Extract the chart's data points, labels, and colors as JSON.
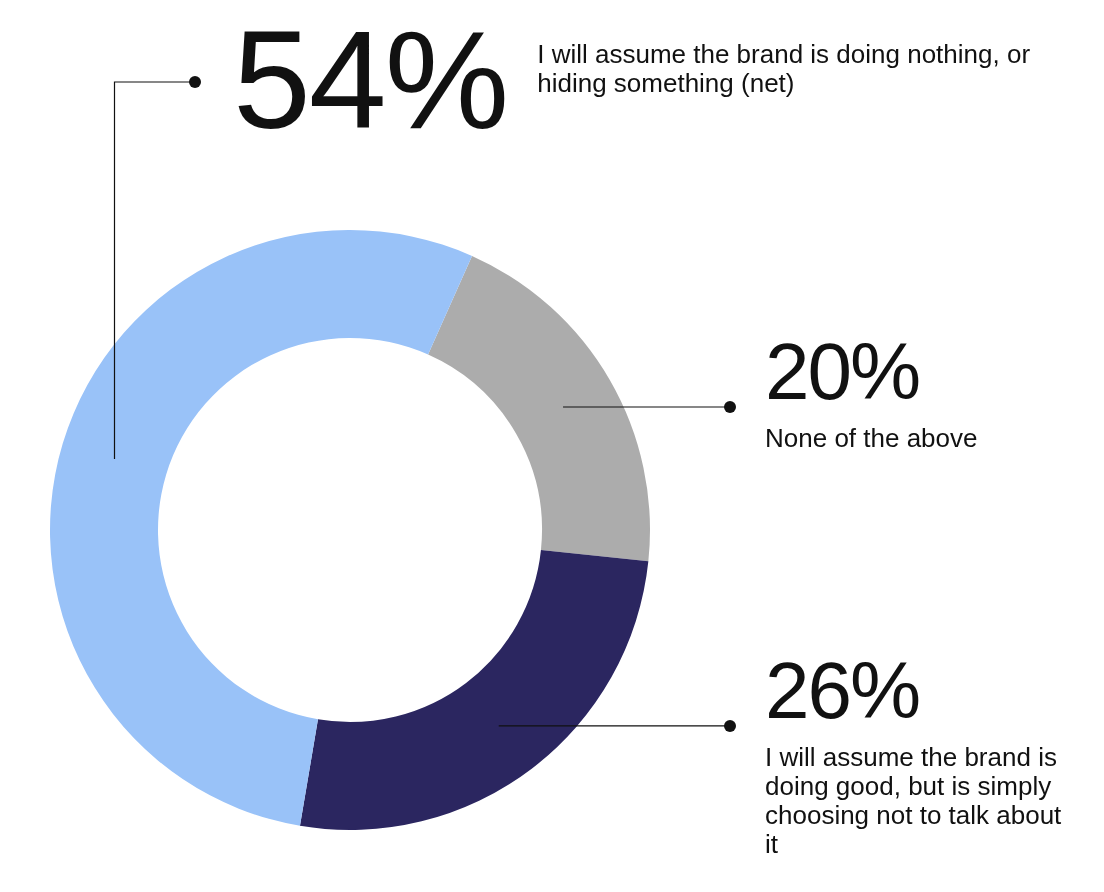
{
  "chart_data": {
    "type": "donut",
    "categories": [
      "None of the above",
      "I will assume the brand is doing good, but is simply choosing not to talk about it",
      "I will assume the brand is doing nothing, or hiding something (net)"
    ],
    "values": [
      20,
      26,
      54
    ],
    "colors": [
      "#acacac",
      "#2b2660",
      "#99c2f8"
    ],
    "value_labels": [
      "20%",
      "26%",
      "54%"
    ],
    "legend": false
  }
}
